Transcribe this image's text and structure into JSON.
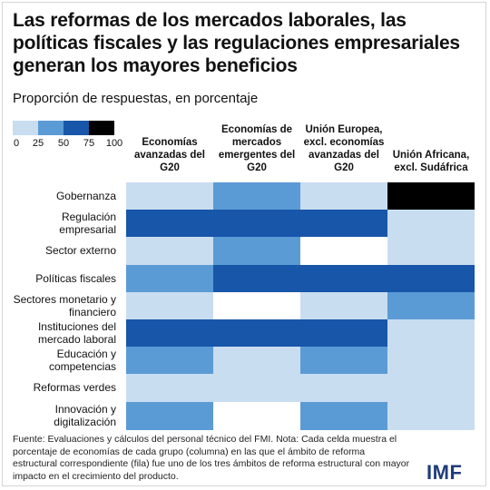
{
  "title": "Las reformas de los mercados laborales, las políticas fiscales y las regulaciones empresariales generan los mayores beneficios",
  "subtitle": "Proporción de respuestas, en porcentaje",
  "legend": {
    "colors": [
      "#c9ddf0",
      "#5b9bd5",
      "#1756a9",
      "#000000"
    ],
    "ticks": [
      "0",
      "25",
      "50",
      "75",
      "100"
    ]
  },
  "columns": [
    "Economías avanzadas del G20",
    "Economías de mercados emergentes del G20",
    "Unión Europea, excl. economías avanzadas del G20",
    "Unión Africana, excl. Sudáfrica"
  ],
  "rows": [
    "Gobernanza",
    "Regulación empresarial",
    "Sector externo",
    "Políticas fiscales",
    "Sectores monetario y financiero",
    "Instituciones del mercado laboral",
    "Educación y competencias",
    "Reformas verdes",
    "Innovación y digitalización"
  ],
  "chart_data": {
    "type": "heatmap",
    "title": "Las reformas de los mercados laborales, las políticas fiscales y las regulaciones empresariales generan los mayores beneficios",
    "subtitle": "Proporción de respuestas, en porcentaje",
    "scale": {
      "min": 0,
      "max": 100,
      "bins": [
        [
          0,
          25
        ],
        [
          25,
          50
        ],
        [
          50,
          75
        ],
        [
          75,
          100
        ]
      ]
    },
    "x": [
      "Economías avanzadas del G20",
      "Economías de mercados emergentes del G20",
      "Unión Europea, excl. economías avanzadas del G20",
      "Unión Africana, excl. Sudáfrica"
    ],
    "y": [
      "Gobernanza",
      "Regulación empresarial",
      "Sector externo",
      "Políticas fiscales",
      "Sectores monetario y financiero",
      "Instituciones del mercado laboral",
      "Educación y competencias",
      "Reformas verdes",
      "Innovación y digitalización"
    ],
    "values": [
      [
        12,
        37,
        12,
        87
      ],
      [
        62,
        62,
        62,
        12
      ],
      [
        12,
        37,
        0,
        12
      ],
      [
        37,
        62,
        62,
        62
      ],
      [
        12,
        0,
        12,
        37
      ],
      [
        62,
        62,
        62,
        12
      ],
      [
        37,
        12,
        37,
        12
      ],
      [
        12,
        12,
        12,
        12
      ],
      [
        37,
        0,
        37,
        12
      ]
    ]
  },
  "source": "Fuente: Evaluaciones y cálculos del personal técnico del FMI. Nota: Cada celda muestra el porcentaje de economías de cada grupo (columna) en las que el ámbito de reforma estructural correspondiente (fila) fue uno de los tres ámbitos de reforma estructural con mayor impacto en el crecimiento del producto.",
  "logo": "IMF"
}
